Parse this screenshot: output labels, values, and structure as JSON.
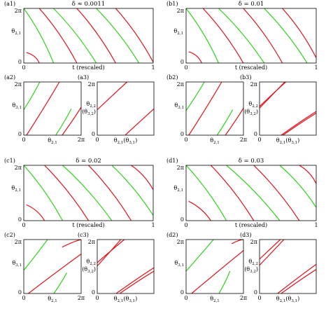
{
  "colors": {
    "red": "#e3111a",
    "green": "#2ed21b"
  },
  "panels_text": {
    "a_title": "δ ≈ 0.0011",
    "b_title": "δ = 0.01",
    "c_title": "δ = 0.02",
    "d_title": "δ = 0.03"
  },
  "chart_data": [
    {
      "id": "a1",
      "type": "line",
      "title": "δ ≈ 0.0011",
      "xlabel": "t (rescaled)",
      "ylabel": "θ2,1",
      "xticks": [
        "0",
        "1"
      ],
      "yticks": [
        "0",
        "2π"
      ],
      "xlim": [
        0,
        1
      ],
      "ylim": [
        0,
        6.283
      ],
      "series": [
        {
          "color": "red",
          "x": [
            0.02,
            0.12
          ],
          "y": [
            1.2,
            0
          ]
        },
        {
          "color": "green",
          "x": [
            0,
            0.23
          ],
          "y": [
            6.283,
            0
          ]
        },
        {
          "color": "red",
          "x": [
            0.12,
            0.41
          ],
          "y": [
            6.283,
            0
          ]
        },
        {
          "color": "green",
          "x": [
            0.23,
            0.56
          ],
          "y": [
            6.283,
            0
          ]
        },
        {
          "color": "red",
          "x": [
            0.41,
            0.71
          ],
          "y": [
            6.283,
            0
          ]
        },
        {
          "color": "green",
          "x": [
            0.56,
            0.89
          ],
          "y": [
            6.283,
            0
          ]
        },
        {
          "color": "red",
          "x": [
            0.71,
            1.0
          ],
          "y": [
            6.283,
            0.1
          ]
        }
      ]
    },
    {
      "id": "a2",
      "type": "line",
      "xlabel": "θ2,1",
      "ylabel": "θ3,1",
      "xticks": [
        "0",
        "2π"
      ],
      "yticks": [
        "0",
        "2π"
      ],
      "series": [
        {
          "color": "green",
          "x": [
            0,
            1.75
          ],
          "y": [
            3.0,
            6.283
          ]
        },
        {
          "color": "red",
          "x": [
            0.3,
            3.9
          ],
          "y": [
            0,
            6.283
          ]
        },
        {
          "color": "green",
          "x": [
            3.5,
            5.2
          ],
          "y": [
            0,
            3.1
          ]
        },
        {
          "color": "red",
          "x": [
            4.2,
            6.283
          ],
          "y": [
            0,
            3.3
          ]
        }
      ]
    },
    {
      "id": "a3",
      "type": "line",
      "xlabel": "θ2,1(θ3,1)",
      "ylabel": "θ2,2 (θ3,2)",
      "xticks": [
        "0"
      ],
      "yticks": [
        "0",
        "2π"
      ],
      "series": [
        {
          "color": "red",
          "x": [
            0,
            3.3
          ],
          "y": [
            3.0,
            6.283
          ]
        },
        {
          "color": "red",
          "x": [
            3.1,
            6.283
          ],
          "y": [
            0,
            3.1
          ]
        }
      ]
    },
    {
      "id": "b1",
      "type": "line",
      "title": "δ = 0.01",
      "xlabel": "t (rescaled)",
      "ylabel": "θ2,1",
      "xticks": [
        "0",
        "1"
      ],
      "yticks": [
        "0",
        "2π"
      ],
      "xlim": [
        0,
        1
      ],
      "ylim": [
        0,
        6.283
      ],
      "series": [
        {
          "color": "red",
          "x": [
            0.02,
            0.12
          ],
          "y": [
            1.3,
            0
          ]
        },
        {
          "color": "green",
          "x": [
            0,
            0.25
          ],
          "y": [
            6.283,
            0
          ]
        },
        {
          "color": "red",
          "x": [
            0.13,
            0.44
          ],
          "y": [
            6.283,
            0
          ]
        },
        {
          "color": "green",
          "x": [
            0.25,
            0.6
          ],
          "y": [
            6.283,
            0
          ]
        },
        {
          "color": "red",
          "x": [
            0.44,
            0.74
          ],
          "y": [
            6.283,
            0
          ]
        },
        {
          "color": "green",
          "x": [
            0.6,
            0.93
          ],
          "y": [
            6.283,
            0
          ]
        },
        {
          "color": "red",
          "x": [
            0.74,
            1.0
          ],
          "y": [
            6.283,
            0.6
          ]
        }
      ]
    },
    {
      "id": "b2",
      "type": "line",
      "xlabel": "θ2,1",
      "ylabel": "θ3,1",
      "xticks": [
        "0",
        "2π"
      ],
      "yticks": [
        "0",
        "2π"
      ],
      "series": [
        {
          "color": "green",
          "x": [
            0,
            2.0
          ],
          "y": [
            2.9,
            6.283
          ]
        },
        {
          "color": "red",
          "x": [
            0.3,
            3.9
          ],
          "y": [
            0,
            6.283
          ]
        },
        {
          "color": "green",
          "x": [
            3.4,
            5.1
          ],
          "y": [
            0,
            3.0
          ]
        },
        {
          "color": "red",
          "x": [
            4.3,
            6.283
          ],
          "y": [
            0,
            3.2
          ]
        }
      ]
    },
    {
      "id": "b3",
      "type": "line",
      "xlabel": "θ2,1(θ3,1)",
      "ylabel": "θ2,2 (θ3,2)",
      "xticks": [
        "0"
      ],
      "yticks": [
        "0",
        "2π"
      ],
      "series": [
        {
          "color": "red",
          "x": [
            0,
            2.9
          ],
          "y": [
            3.4,
            6.283
          ]
        },
        {
          "color": "red",
          "x": [
            0,
            2.8
          ],
          "y": [
            3.2,
            6.283
          ]
        },
        {
          "color": "red",
          "x": [
            2.4,
            6.283
          ],
          "y": [
            0,
            2.8
          ]
        },
        {
          "color": "red",
          "x": [
            2.6,
            6.283
          ],
          "y": [
            0,
            2.6
          ]
        }
      ]
    },
    {
      "id": "c1",
      "type": "line",
      "title": "δ = 0.02",
      "xlabel": "t (rescaled)",
      "ylabel": "θ2,1",
      "xticks": [
        "0",
        "1"
      ],
      "yticks": [
        "0",
        "2π"
      ],
      "xlim": [
        0,
        1
      ],
      "ylim": [
        0,
        6.283
      ],
      "series": [
        {
          "color": "red",
          "x": [
            0.02,
            0.16
          ],
          "y": [
            1.8,
            0
          ]
        },
        {
          "color": "green",
          "x": [
            0,
            0.3
          ],
          "y": [
            6.283,
            0
          ]
        },
        {
          "color": "red",
          "x": [
            0.16,
            0.5
          ],
          "y": [
            6.283,
            0
          ]
        },
        {
          "color": "green",
          "x": [
            0.3,
            0.68
          ],
          "y": [
            6.283,
            0
          ]
        },
        {
          "color": "red",
          "x": [
            0.5,
            0.83
          ],
          "y": [
            6.283,
            0
          ]
        },
        {
          "color": "green",
          "x": [
            0.68,
            1.0
          ],
          "y": [
            6.283,
            0.6
          ]
        },
        {
          "color": "red",
          "x": [
            0.83,
            1.0
          ],
          "y": [
            6.283,
            3.5
          ]
        }
      ]
    },
    {
      "id": "c2",
      "type": "line",
      "xlabel": "θ2,1",
      "ylabel": "θ3,1",
      "xticks": [
        "0",
        "2π"
      ],
      "yticks": [
        "0",
        "2π"
      ],
      "series": [
        {
          "color": "green",
          "x": [
            0,
            2.6
          ],
          "y": [
            2.7,
            6.283
          ]
        },
        {
          "color": "red",
          "x": [
            0.5,
            6.283
          ],
          "y": [
            0,
            4.6
          ]
        },
        {
          "color": "green",
          "x": [
            3.3,
            4.7
          ],
          "y": [
            0,
            2.4
          ]
        },
        {
          "color": "red",
          "x": [
            4.2,
            6.283
          ],
          "y": [
            5.4,
            6.283
          ]
        }
      ]
    },
    {
      "id": "c3",
      "type": "line",
      "xlabel": "θ2,1(θ3,1)",
      "ylabel": "θ2,2 (θ3,2)",
      "xticks": [
        "0"
      ],
      "yticks": [
        "0",
        "2π"
      ],
      "series": [
        {
          "color": "red",
          "x": [
            0,
            3.0
          ],
          "y": [
            3.6,
            6.283
          ]
        },
        {
          "color": "red",
          "x": [
            0,
            2.6
          ],
          "y": [
            3.2,
            6.283
          ]
        },
        {
          "color": "red",
          "x": [
            2.1,
            6.283
          ],
          "y": [
            0,
            3.0
          ]
        },
        {
          "color": "red",
          "x": [
            2.5,
            6.283
          ],
          "y": [
            0,
            2.6
          ]
        }
      ]
    },
    {
      "id": "d1",
      "type": "line",
      "title": "δ = 0.03",
      "xlabel": "t (rescaled)",
      "ylabel": "θ2,1",
      "xticks": [
        "0",
        "1"
      ],
      "yticks": [
        "0",
        "2π"
      ],
      "xlim": [
        0,
        1
      ],
      "ylim": [
        0,
        6.283
      ],
      "series": [
        {
          "color": "red",
          "x": [
            0.02,
            0.19
          ],
          "y": [
            2.2,
            0
          ]
        },
        {
          "color": "green",
          "x": [
            0,
            0.31
          ],
          "y": [
            6.283,
            0
          ]
        },
        {
          "color": "red",
          "x": [
            0.19,
            0.52
          ],
          "y": [
            6.283,
            0
          ]
        },
        {
          "color": "green",
          "x": [
            0.31,
            0.72
          ],
          "y": [
            6.283,
            0
          ]
        },
        {
          "color": "red",
          "x": [
            0.52,
            0.87
          ],
          "y": [
            6.283,
            0
          ]
        },
        {
          "color": "green",
          "x": [
            0.72,
            1.0
          ],
          "y": [
            6.283,
            1.5
          ]
        },
        {
          "color": "red",
          "x": [
            0.87,
            1.0
          ],
          "y": [
            6.283,
            4.2
          ]
        }
      ]
    },
    {
      "id": "d2",
      "type": "line",
      "xlabel": "θ2,1",
      "ylabel": "θ3,1",
      "xticks": [
        "0",
        "2π"
      ],
      "yticks": [
        "0",
        "2π"
      ],
      "series": [
        {
          "color": "green",
          "x": [
            0,
            3.0
          ],
          "y": [
            2.6,
            6.283
          ]
        },
        {
          "color": "red",
          "x": [
            0.6,
            6.283
          ],
          "y": [
            0,
            5.0
          ]
        },
        {
          "color": "green",
          "x": [
            3.6,
            4.8
          ],
          "y": [
            0,
            2.6
          ]
        },
        {
          "color": "red",
          "x": [
            5.0,
            6.283
          ],
          "y": [
            5.8,
            6.283
          ]
        }
      ]
    },
    {
      "id": "d3",
      "type": "line",
      "xlabel": "θ2,1(θ3,1)",
      "ylabel": "θ2,2 (θ3,2)",
      "xticks": [
        "0"
      ],
      "yticks": [
        "0",
        "2π"
      ],
      "series": [
        {
          "color": "red",
          "x": [
            0,
            2.3
          ],
          "y": [
            4.0,
            6.283
          ]
        },
        {
          "color": "red",
          "x": [
            0,
            2.7
          ],
          "y": [
            3.3,
            6.283
          ]
        },
        {
          "color": "red",
          "x": [
            2.0,
            6.283
          ],
          "y": [
            0,
            3.4
          ]
        },
        {
          "color": "red",
          "x": [
            2.4,
            6.283
          ],
          "y": [
            0,
            2.8
          ]
        }
      ]
    }
  ]
}
